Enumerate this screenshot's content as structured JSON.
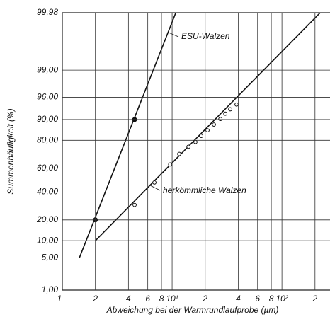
{
  "chart_data": {
    "type": "probability-plot",
    "xlabel": "Abweichung bei der Warmrundlaufprobe (µm)",
    "ylabel": "Summenhäufigkeit (%)",
    "xscale": "log",
    "yscale": "probability",
    "grid": true,
    "xlim": [
      1,
      274
    ],
    "ylim": [
      1,
      99.98
    ],
    "xticks": [
      1,
      2,
      4,
      6,
      8,
      {
        "value": 10,
        "label": "10¹"
      },
      {
        "value": 20,
        "label": "2"
      },
      {
        "value": 40,
        "label": "4"
      },
      {
        "value": 60,
        "label": "6"
      },
      {
        "value": 80,
        "label": "8"
      },
      {
        "value": 100,
        "label": "10²"
      },
      {
        "value": 200,
        "label": "2"
      }
    ],
    "yticks": [
      {
        "value": 1,
        "label": "1,00"
      },
      {
        "value": 5,
        "label": "5,00"
      },
      {
        "value": 10,
        "label": "10,00"
      },
      {
        "value": 20,
        "label": "20,00"
      },
      {
        "value": 40,
        "label": "40,00"
      },
      {
        "value": 60,
        "label": "60,00"
      },
      {
        "value": 80,
        "label": "80,00"
      },
      {
        "value": 90,
        "label": "90,00"
      },
      {
        "value": 96,
        "label": "96,00"
      },
      {
        "value": 99,
        "label": "99,00"
      },
      {
        "value": 99.98,
        "label": "99,98"
      }
    ],
    "series": [
      {
        "name": "ESU-Walzen",
        "color": "#111111",
        "marker": "filled",
        "x": [
          2,
          4.55
        ],
        "values": [
          20,
          90
        ],
        "fit_x": [
          1.43,
          10.8
        ],
        "fit_values": [
          5,
          99.98
        ]
      },
      {
        "name": "herkömmliche Walzen",
        "color": "#111111",
        "marker": "open",
        "x": [
          4.55,
          6.9,
          9.6,
          11.6,
          14.1,
          16.3,
          18.4,
          21,
          24,
          27.5,
          30.5,
          33.8,
          38.6
        ],
        "values": [
          30,
          48,
          63,
          71,
          76,
          79,
          82.5,
          85.4,
          88,
          90.2,
          92,
          93.3,
          94.5
        ],
        "fit_x": [
          2,
          223
        ],
        "fit_values": [
          10,
          99.98
        ]
      }
    ]
  }
}
